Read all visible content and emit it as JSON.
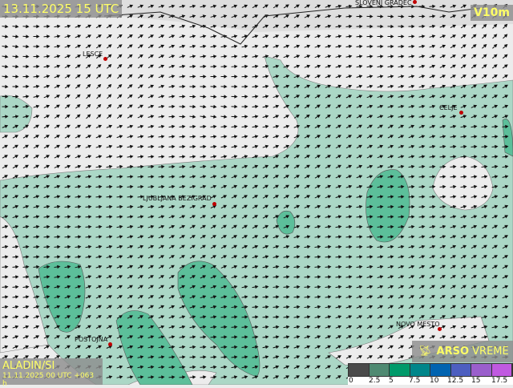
{
  "header": {
    "title": "13.11.2025 15 UTC",
    "variable": "V10m"
  },
  "model": {
    "name": "ALADIN/SI",
    "run": "11.11.2025 00 UTC +063 h"
  },
  "brand": {
    "icon": "satellite-dish-icon",
    "bold": "ARSO",
    "rest": "VREME"
  },
  "cities": [
    {
      "name": "SLOVENJ GRADEC"
    },
    {
      "name": "LESCE"
    },
    {
      "name": "CELJE"
    },
    {
      "name": "LJUBLJANA BEZIGRAD"
    },
    {
      "name": "NOVO MESTO"
    },
    {
      "name": "POSTOJNA"
    }
  ],
  "legend": {
    "unit_levels": [
      "0",
      "2.5",
      "5",
      "7.5",
      "10",
      "12.5",
      "15",
      "17.5"
    ],
    "colors": [
      "#4a4a4a",
      "#4f8a72",
      "#009a6a",
      "#00868a",
      "#0063b0",
      "#4d5fc0",
      "#9a5fcc",
      "#c05ae0"
    ]
  },
  "wind": {
    "prevailing_direction": "east-northeast"
  },
  "colors": {
    "wind_band_5_7_5": "#a8d6c4",
    "wind_band_7_5_10": "#5cbf9a",
    "land": "#ececec"
  }
}
